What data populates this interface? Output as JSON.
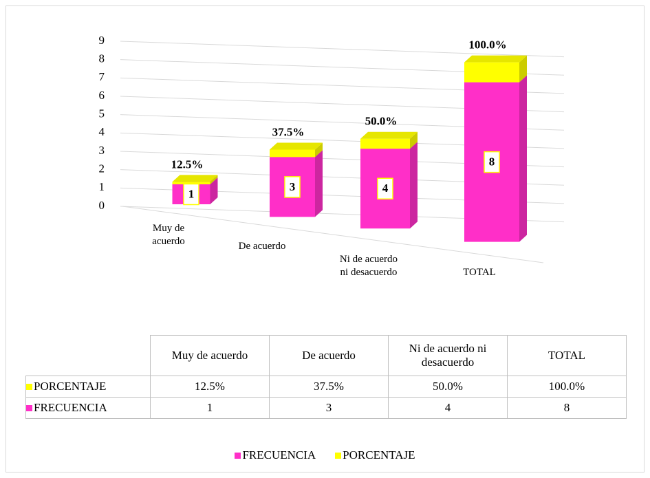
{
  "chart_data": {
    "type": "bar",
    "stacked": true,
    "categories": [
      "Muy de acuerdo",
      "De acuerdo",
      "Ni de acuerdo ni desacuerdo",
      "TOTAL"
    ],
    "series": [
      {
        "name": "FRECUENCIA",
        "color": "#ff2fc8",
        "values": [
          1,
          3,
          4,
          8
        ]
      },
      {
        "name": "PORCENTAJE",
        "color": "#ffff00",
        "values": [
          0.125,
          0.375,
          0.5,
          1
        ],
        "value_labels": [
          "12.5%",
          "37.5%",
          "50.0%",
          "100.0%"
        ]
      }
    ],
    "ylim": [
      0,
      9
    ],
    "yticks": [
      0,
      1,
      2,
      3,
      4,
      5,
      6,
      7,
      8,
      9
    ],
    "grid": true,
    "legend": "bottom",
    "data_table": true
  }
}
